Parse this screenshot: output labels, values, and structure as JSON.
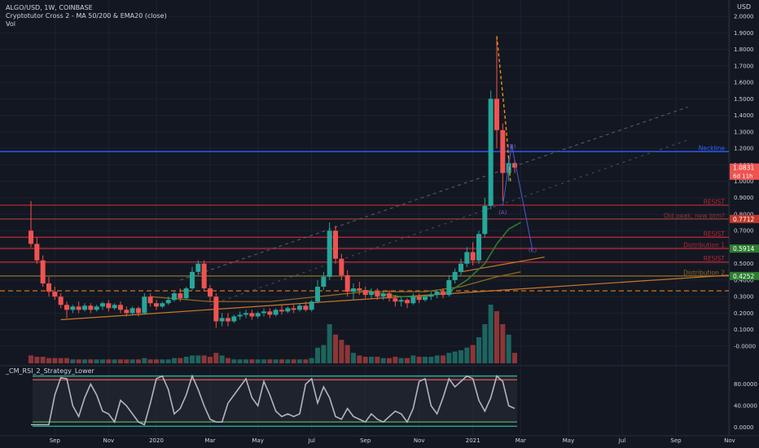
{
  "header": {
    "symbol_line": "ALGO/USD, 1W, COINBASE",
    "indicator_line": "Cryptotutor Cross 2 - MA 50/200 & EMA20 (close)",
    "volume_label": "Vol",
    "currency": "USD"
  },
  "lower_pane": {
    "title": "_CM_RSI_2_Strategy_Lower"
  },
  "colors": {
    "background": "#131722",
    "grid": "#1e222d",
    "up": "#26a69a",
    "down": "#ef5350",
    "neckline": "#2962ff",
    "resist": "#b22833",
    "ema": "#2e7d32",
    "ma": "#ff9800",
    "rsi": "#b2b5be",
    "axis_text": "#d1d4dc"
  },
  "chart_data": {
    "type": "candlestick",
    "symbol": "ALGO/USD",
    "interval": "1W",
    "exchange": "COINBASE",
    "price_ticks": [
      "2.0000",
      "1.9000",
      "1.8000",
      "1.7000",
      "1.6000",
      "1.5000",
      "1.4000",
      "1.3000",
      "1.2000",
      "1.1000",
      "1.0000",
      "0.9000",
      "0.8000",
      "0.7000",
      "0.6000",
      "0.5000",
      "0.4000",
      "0.3000",
      "0.2000",
      "0.1000",
      "-0.0000"
    ],
    "rsi_ticks": [
      "80.0000",
      "40.0000",
      "0.0000"
    ],
    "x_ticks": [
      "Sep",
      "Nov",
      "2020",
      "Mar",
      "May",
      "Jul",
      "Sep",
      "Nov",
      "2021",
      "Mar",
      "May",
      "Jul",
      "Sep",
      "Nov"
    ],
    "ylim": [
      -0.05,
      2.05
    ],
    "rsi_ylim": [
      -5,
      105
    ],
    "weeks_range": [
      0,
      176
    ],
    "x_tick_weeks": [
      4,
      13,
      21,
      30,
      38,
      47,
      56,
      65,
      74,
      82,
      90,
      99,
      108,
      117
    ],
    "candles": [
      {
        "w": 0,
        "o": 0.7,
        "h": 0.88,
        "c": 0.62,
        "l": 0.6,
        "v": 6
      },
      {
        "w": 1,
        "o": 0.62,
        "h": 0.66,
        "c": 0.52,
        "l": 0.5,
        "v": 5
      },
      {
        "w": 2,
        "o": 0.52,
        "h": 0.55,
        "c": 0.38,
        "l": 0.36,
        "v": 5
      },
      {
        "w": 3,
        "o": 0.38,
        "h": 0.42,
        "c": 0.33,
        "l": 0.3,
        "v": 4
      },
      {
        "w": 4,
        "o": 0.33,
        "h": 0.36,
        "c": 0.3,
        "l": 0.28,
        "v": 4
      },
      {
        "w": 5,
        "o": 0.3,
        "h": 0.32,
        "c": 0.25,
        "l": 0.23,
        "v": 4
      },
      {
        "w": 6,
        "o": 0.25,
        "h": 0.27,
        "c": 0.22,
        "l": 0.17,
        "v": 4
      },
      {
        "w": 7,
        "o": 0.22,
        "h": 0.25,
        "c": 0.24,
        "l": 0.2,
        "v": 3
      },
      {
        "w": 8,
        "o": 0.24,
        "h": 0.27,
        "c": 0.22,
        "l": 0.2,
        "v": 3
      },
      {
        "w": 9,
        "o": 0.22,
        "h": 0.26,
        "c": 0.245,
        "l": 0.21,
        "v": 3
      },
      {
        "w": 10,
        "o": 0.245,
        "h": 0.26,
        "c": 0.22,
        "l": 0.2,
        "v": 3
      },
      {
        "w": 11,
        "o": 0.22,
        "h": 0.25,
        "c": 0.24,
        "l": 0.21,
        "v": 3
      },
      {
        "w": 12,
        "o": 0.24,
        "h": 0.27,
        "c": 0.26,
        "l": 0.22,
        "v": 3
      },
      {
        "w": 13,
        "o": 0.26,
        "h": 0.28,
        "c": 0.23,
        "l": 0.21,
        "v": 3
      },
      {
        "w": 14,
        "o": 0.23,
        "h": 0.26,
        "c": 0.25,
        "l": 0.22,
        "v": 3
      },
      {
        "w": 15,
        "o": 0.25,
        "h": 0.27,
        "c": 0.22,
        "l": 0.2,
        "v": 3
      },
      {
        "w": 16,
        "o": 0.22,
        "h": 0.24,
        "c": 0.2,
        "l": 0.18,
        "v": 3
      },
      {
        "w": 17,
        "o": 0.2,
        "h": 0.24,
        "c": 0.23,
        "l": 0.19,
        "v": 3
      },
      {
        "w": 18,
        "o": 0.23,
        "h": 0.24,
        "c": 0.2,
        "l": 0.18,
        "v": 3
      },
      {
        "w": 19,
        "o": 0.2,
        "h": 0.32,
        "c": 0.3,
        "l": 0.19,
        "v": 4
      },
      {
        "w": 20,
        "o": 0.3,
        "h": 0.32,
        "c": 0.26,
        "l": 0.24,
        "v": 3
      },
      {
        "w": 21,
        "o": 0.26,
        "h": 0.28,
        "c": 0.24,
        "l": 0.22,
        "v": 3
      },
      {
        "w": 22,
        "o": 0.24,
        "h": 0.27,
        "c": 0.26,
        "l": 0.23,
        "v": 3
      },
      {
        "w": 23,
        "o": 0.26,
        "h": 0.3,
        "c": 0.28,
        "l": 0.25,
        "v": 3
      },
      {
        "w": 24,
        "o": 0.28,
        "h": 0.33,
        "c": 0.32,
        "l": 0.27,
        "v": 4
      },
      {
        "w": 25,
        "o": 0.32,
        "h": 0.35,
        "c": 0.29,
        "l": 0.27,
        "v": 4
      },
      {
        "w": 26,
        "o": 0.29,
        "h": 0.36,
        "c": 0.35,
        "l": 0.28,
        "v": 5
      },
      {
        "w": 27,
        "o": 0.35,
        "h": 0.48,
        "c": 0.45,
        "l": 0.34,
        "v": 6
      },
      {
        "w": 28,
        "o": 0.45,
        "h": 0.52,
        "c": 0.5,
        "l": 0.43,
        "v": 6
      },
      {
        "w": 29,
        "o": 0.5,
        "h": 0.52,
        "c": 0.35,
        "l": 0.33,
        "v": 6
      },
      {
        "w": 30,
        "o": 0.35,
        "h": 0.37,
        "c": 0.3,
        "l": 0.27,
        "v": 5
      },
      {
        "w": 31,
        "o": 0.3,
        "h": 0.32,
        "c": 0.15,
        "l": 0.11,
        "v": 8
      },
      {
        "w": 32,
        "o": 0.15,
        "h": 0.2,
        "c": 0.17,
        "l": 0.12,
        "v": 6
      },
      {
        "w": 33,
        "o": 0.17,
        "h": 0.2,
        "c": 0.15,
        "l": 0.12,
        "v": 4
      },
      {
        "w": 34,
        "o": 0.15,
        "h": 0.19,
        "c": 0.18,
        "l": 0.14,
        "v": 3
      },
      {
        "w": 35,
        "o": 0.18,
        "h": 0.21,
        "c": 0.19,
        "l": 0.16,
        "v": 3
      },
      {
        "w": 36,
        "o": 0.19,
        "h": 0.22,
        "c": 0.2,
        "l": 0.17,
        "v": 3
      },
      {
        "w": 37,
        "o": 0.2,
        "h": 0.22,
        "c": 0.18,
        "l": 0.16,
        "v": 3
      },
      {
        "w": 38,
        "o": 0.18,
        "h": 0.21,
        "c": 0.2,
        "l": 0.17,
        "v": 3
      },
      {
        "w": 39,
        "o": 0.2,
        "h": 0.23,
        "c": 0.21,
        "l": 0.18,
        "v": 3
      },
      {
        "w": 40,
        "o": 0.21,
        "h": 0.23,
        "c": 0.19,
        "l": 0.17,
        "v": 3
      },
      {
        "w": 41,
        "o": 0.19,
        "h": 0.23,
        "c": 0.22,
        "l": 0.18,
        "v": 3
      },
      {
        "w": 42,
        "o": 0.22,
        "h": 0.25,
        "c": 0.21,
        "l": 0.19,
        "v": 3
      },
      {
        "w": 43,
        "o": 0.21,
        "h": 0.24,
        "c": 0.23,
        "l": 0.2,
        "v": 3
      },
      {
        "w": 44,
        "o": 0.23,
        "h": 0.25,
        "c": 0.22,
        "l": 0.2,
        "v": 3
      },
      {
        "w": 45,
        "o": 0.22,
        "h": 0.26,
        "c": 0.245,
        "l": 0.21,
        "v": 3
      },
      {
        "w": 46,
        "o": 0.245,
        "h": 0.27,
        "c": 0.22,
        "l": 0.21,
        "v": 3
      },
      {
        "w": 47,
        "o": 0.22,
        "h": 0.28,
        "c": 0.27,
        "l": 0.21,
        "v": 4
      },
      {
        "w": 48,
        "o": 0.27,
        "h": 0.4,
        "c": 0.36,
        "l": 0.26,
        "v": 12
      },
      {
        "w": 49,
        "o": 0.36,
        "h": 0.45,
        "c": 0.42,
        "l": 0.34,
        "v": 14
      },
      {
        "w": 50,
        "o": 0.42,
        "h": 0.75,
        "c": 0.7,
        "l": 0.4,
        "v": 30
      },
      {
        "w": 51,
        "o": 0.7,
        "h": 0.73,
        "c": 0.53,
        "l": 0.5,
        "v": 22
      },
      {
        "w": 52,
        "o": 0.53,
        "h": 0.56,
        "c": 0.43,
        "l": 0.4,
        "v": 18
      },
      {
        "w": 53,
        "o": 0.43,
        "h": 0.46,
        "c": 0.33,
        "l": 0.3,
        "v": 14
      },
      {
        "w": 54,
        "o": 0.33,
        "h": 0.38,
        "c": 0.35,
        "l": 0.28,
        "v": 8
      },
      {
        "w": 55,
        "o": 0.35,
        "h": 0.39,
        "c": 0.34,
        "l": 0.31,
        "v": 6
      },
      {
        "w": 56,
        "o": 0.34,
        "h": 0.36,
        "c": 0.31,
        "l": 0.29,
        "v": 5
      },
      {
        "w": 57,
        "o": 0.31,
        "h": 0.35,
        "c": 0.33,
        "l": 0.29,
        "v": 5
      },
      {
        "w": 58,
        "o": 0.33,
        "h": 0.35,
        "c": 0.3,
        "l": 0.28,
        "v": 5
      },
      {
        "w": 59,
        "o": 0.3,
        "h": 0.33,
        "c": 0.32,
        "l": 0.28,
        "v": 4
      },
      {
        "w": 60,
        "o": 0.32,
        "h": 0.34,
        "c": 0.29,
        "l": 0.27,
        "v": 4
      },
      {
        "w": 61,
        "o": 0.29,
        "h": 0.31,
        "c": 0.27,
        "l": 0.24,
        "v": 5
      },
      {
        "w": 62,
        "o": 0.27,
        "h": 0.3,
        "c": 0.28,
        "l": 0.24,
        "v": 4
      },
      {
        "w": 63,
        "o": 0.28,
        "h": 0.29,
        "c": 0.26,
        "l": 0.23,
        "v": 4
      },
      {
        "w": 64,
        "o": 0.26,
        "h": 0.32,
        "c": 0.3,
        "l": 0.25,
        "v": 6
      },
      {
        "w": 65,
        "o": 0.3,
        "h": 0.32,
        "c": 0.28,
        "l": 0.26,
        "v": 5
      },
      {
        "w": 66,
        "o": 0.28,
        "h": 0.31,
        "c": 0.3,
        "l": 0.27,
        "v": 5
      },
      {
        "w": 67,
        "o": 0.3,
        "h": 0.33,
        "c": 0.31,
        "l": 0.28,
        "v": 5
      },
      {
        "w": 68,
        "o": 0.31,
        "h": 0.34,
        "c": 0.33,
        "l": 0.29,
        "v": 6
      },
      {
        "w": 69,
        "o": 0.33,
        "h": 0.35,
        "c": 0.31,
        "l": 0.29,
        "v": 6
      },
      {
        "w": 70,
        "o": 0.31,
        "h": 0.43,
        "c": 0.4,
        "l": 0.3,
        "v": 8
      },
      {
        "w": 71,
        "o": 0.4,
        "h": 0.47,
        "c": 0.45,
        "l": 0.38,
        "v": 9
      },
      {
        "w": 72,
        "o": 0.45,
        "h": 0.53,
        "c": 0.5,
        "l": 0.43,
        "v": 10
      },
      {
        "w": 73,
        "o": 0.5,
        "h": 0.6,
        "c": 0.57,
        "l": 0.48,
        "v": 12
      },
      {
        "w": 74,
        "o": 0.57,
        "h": 0.63,
        "c": 0.52,
        "l": 0.49,
        "v": 14
      },
      {
        "w": 75,
        "o": 0.52,
        "h": 0.7,
        "c": 0.68,
        "l": 0.5,
        "v": 20
      },
      {
        "w": 76,
        "o": 0.68,
        "h": 0.9,
        "c": 0.85,
        "l": 0.66,
        "v": 30
      },
      {
        "w": 77,
        "o": 0.85,
        "h": 1.55,
        "c": 1.5,
        "l": 0.83,
        "v": 45
      },
      {
        "w": 78,
        "o": 1.5,
        "h": 1.88,
        "c": 1.31,
        "l": 1.2,
        "v": 40
      },
      {
        "w": 79,
        "o": 1.31,
        "h": 1.35,
        "c": 1.05,
        "l": 0.88,
        "v": 30
      },
      {
        "w": 80,
        "o": 1.05,
        "h": 1.14,
        "c": 1.11,
        "l": 1.0,
        "v": 22
      },
      {
        "w": 81,
        "o": 1.11,
        "h": 1.13,
        "c": 1.083,
        "l": 1.05,
        "v": 8
      }
    ],
    "price_labels": [
      {
        "text": "1.0831",
        "sub": "6d 11h",
        "price": 1.083,
        "kind": "current"
      },
      {
        "text": "0.7712",
        "price": 0.7712,
        "kind": "resist"
      },
      {
        "text": "0.5914",
        "price": 0.5914,
        "kind": "support"
      },
      {
        "text": "0.4252",
        "price": 0.4252,
        "kind": "support"
      }
    ],
    "horizontal_levels": [
      {
        "label": "Neckline",
        "price": 1.18,
        "color": "#2962ff"
      },
      {
        "label": "RESIST",
        "price": 0.855,
        "color": "#b22833"
      },
      {
        "label": "Old peak, new btm?",
        "price": 0.7712,
        "color": "#8a3a3a"
      },
      {
        "label": "RESIST",
        "price": 0.66,
        "color": "#b22833"
      },
      {
        "label": "Distribution 1",
        "price": 0.5914,
        "color": "#b22833"
      },
      {
        "label": "RESIST",
        "price": 0.51,
        "color": "#b22833"
      },
      {
        "label": "Distribution 2",
        "price": 0.4252,
        "color": "#8a6a2a"
      }
    ],
    "wave_labels": [
      {
        "text": "(B)",
        "w": 80.5,
        "price": 1.2
      },
      {
        "text": "(A)",
        "w": 79.0,
        "price": 0.8
      },
      {
        "text": "(C)",
        "w": 84.0,
        "price": 0.57
      }
    ],
    "ema20": [
      [
        54,
        0.34
      ],
      [
        58,
        0.32
      ],
      [
        62,
        0.3
      ],
      [
        66,
        0.3
      ],
      [
        70,
        0.33
      ],
      [
        73,
        0.4
      ],
      [
        76,
        0.5
      ],
      [
        78,
        0.62
      ],
      [
        80,
        0.71
      ],
      [
        82,
        0.75
      ]
    ],
    "ma50": [
      [
        20,
        0.3
      ],
      [
        30,
        0.27
      ],
      [
        40,
        0.27
      ],
      [
        48,
        0.3
      ],
      [
        56,
        0.33
      ],
      [
        66,
        0.33
      ],
      [
        72,
        0.36
      ],
      [
        78,
        0.42
      ],
      [
        82,
        0.45
      ]
    ],
    "rsi": [
      5,
      5,
      5,
      5,
      60,
      92,
      90,
      40,
      20,
      55,
      80,
      60,
      30,
      25,
      10,
      50,
      40,
      25,
      10,
      5,
      45,
      90,
      95,
      70,
      25,
      35,
      60,
      95,
      70,
      40,
      15,
      10,
      10,
      45,
      60,
      75,
      90,
      55,
      40,
      85,
      60,
      30,
      20,
      25,
      20,
      25,
      80,
      90,
      45,
      75,
      55,
      20,
      15,
      35,
      20,
      15,
      10,
      25,
      15,
      10,
      20,
      30,
      25,
      10,
      35,
      85,
      90,
      40,
      25,
      55,
      90,
      75,
      85,
      95,
      90,
      50,
      30,
      55,
      95,
      85,
      40,
      35
    ],
    "volume_scale_max": 50
  }
}
